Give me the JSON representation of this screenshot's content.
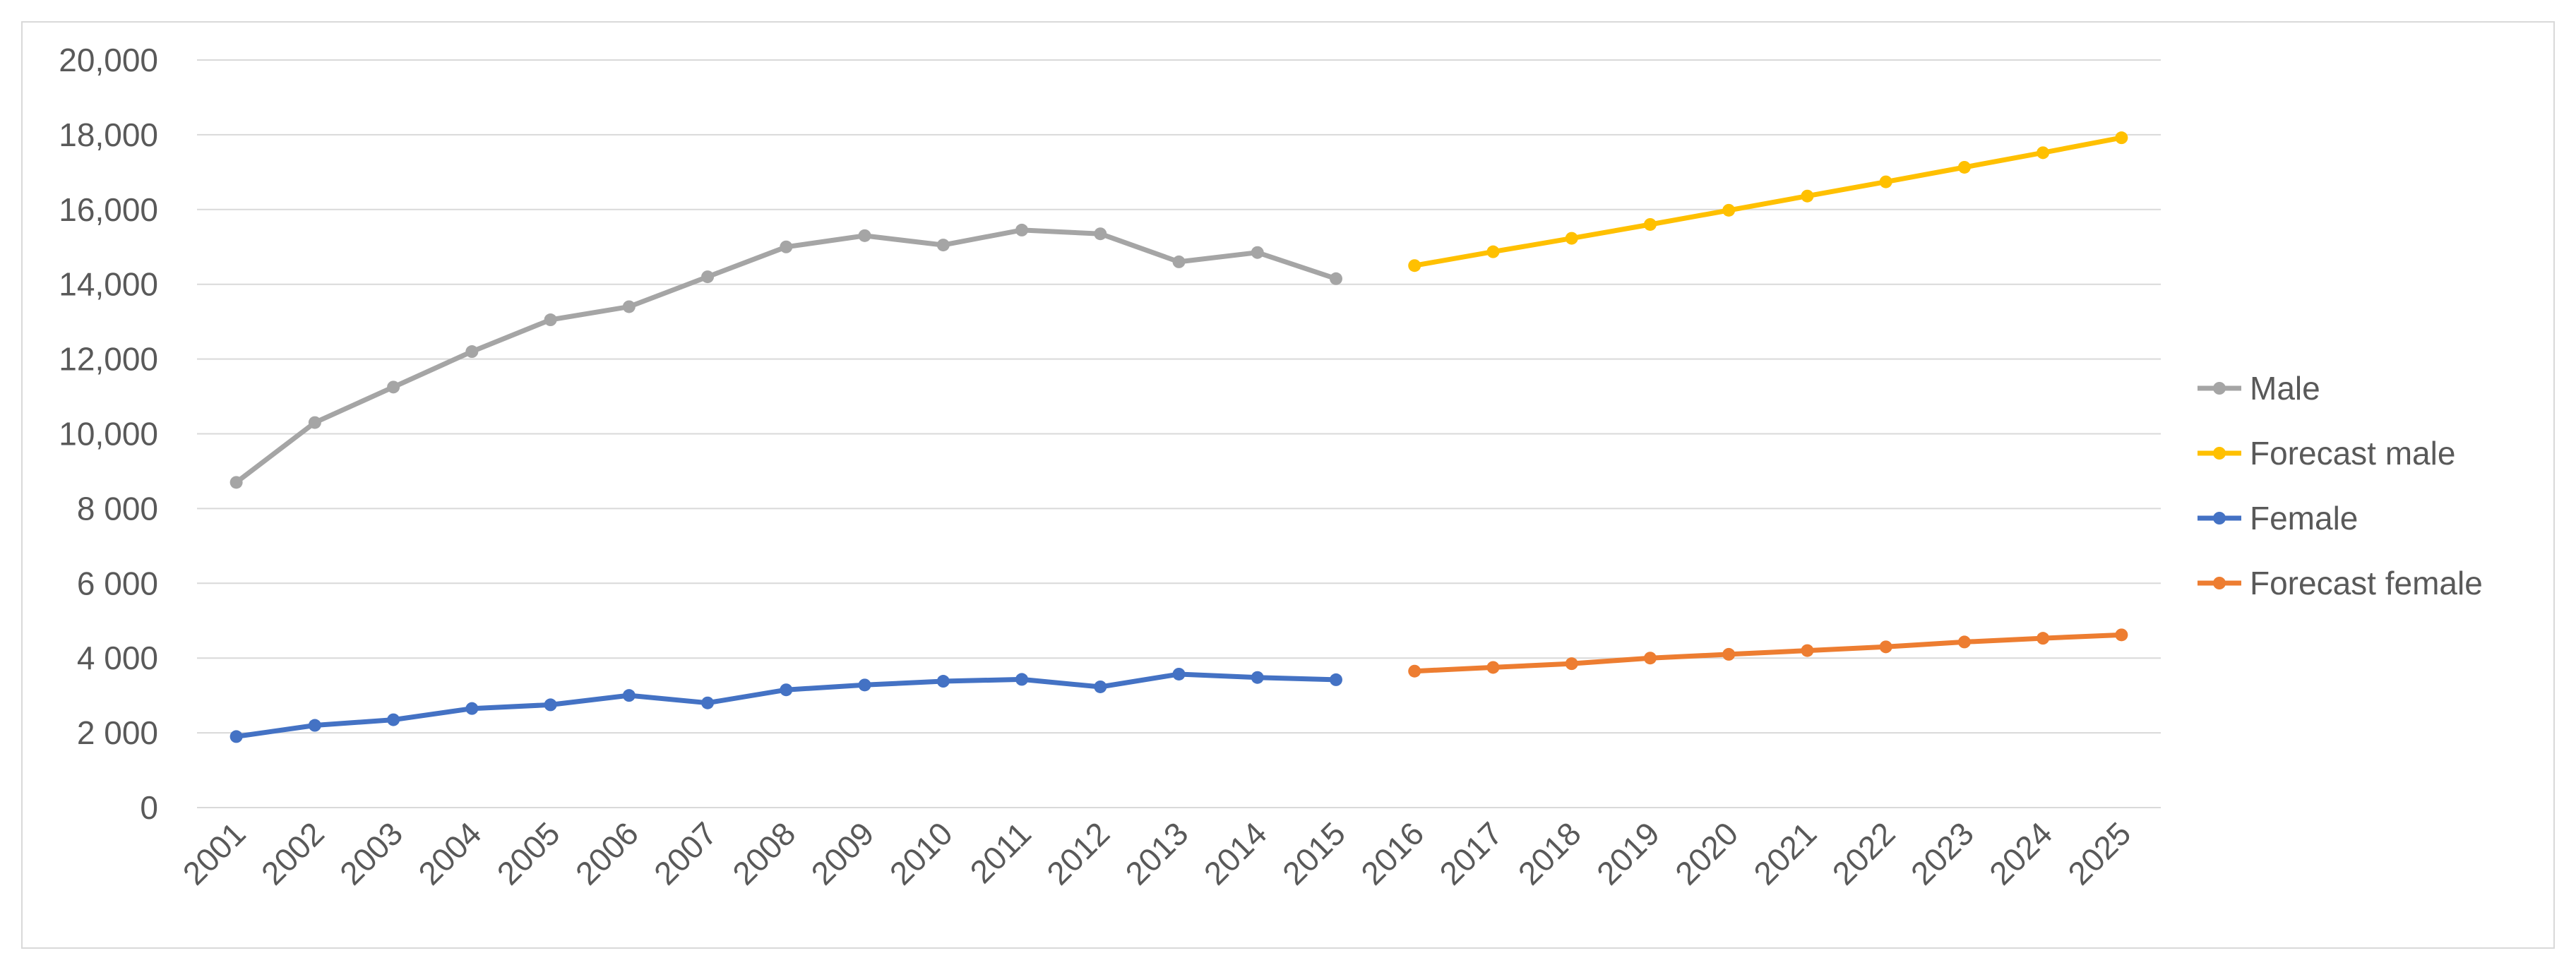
{
  "chart_data": {
    "type": "line",
    "x": [
      "2001",
      "2002",
      "2003",
      "2004",
      "2005",
      "2006",
      "2007",
      "2008",
      "2009",
      "2010",
      "2011",
      "2012",
      "2013",
      "2014",
      "2015",
      "2016",
      "2017",
      "2018",
      "2019",
      "2020",
      "2021",
      "2022",
      "2023",
      "2024",
      "2025"
    ],
    "y_ticks": [
      "0",
      "2 000",
      "4 000",
      "6 000",
      "8 000",
      "10,000",
      "12,000",
      "14,000",
      "16,000",
      "18,000",
      "20,000"
    ],
    "ylim": [
      0,
      20000
    ],
    "grid": true,
    "legend_position": "right",
    "series": [
      {
        "name": "Male",
        "color": "#a5a5a5",
        "values": [
          8700,
          10300,
          11250,
          12200,
          13050,
          13400,
          14200,
          15000,
          15300,
          15050,
          15450,
          15350,
          14600,
          14850,
          14150,
          null,
          null,
          null,
          null,
          null,
          null,
          null,
          null,
          null,
          null
        ]
      },
      {
        "name": "Forecast male",
        "color": "#ffc000",
        "values": [
          null,
          null,
          null,
          null,
          null,
          null,
          null,
          null,
          null,
          null,
          null,
          null,
          null,
          null,
          null,
          14500,
          14870,
          15230,
          15600,
          15980,
          16360,
          16740,
          17130,
          17520,
          17920
        ]
      },
      {
        "name": "Female",
        "color": "#4472c4",
        "values": [
          1900,
          2200,
          2350,
          2650,
          2750,
          3000,
          2800,
          3150,
          3280,
          3380,
          3430,
          3230,
          3570,
          3480,
          3420,
          null,
          null,
          null,
          null,
          null,
          null,
          null,
          null,
          null,
          null
        ]
      },
      {
        "name": "Forecast female",
        "color": "#ed7d31",
        "values": [
          null,
          null,
          null,
          null,
          null,
          null,
          null,
          null,
          null,
          null,
          null,
          null,
          null,
          null,
          null,
          3650,
          3750,
          3850,
          4000,
          4100,
          4200,
          4300,
          4430,
          4530,
          4620
        ]
      }
    ]
  }
}
